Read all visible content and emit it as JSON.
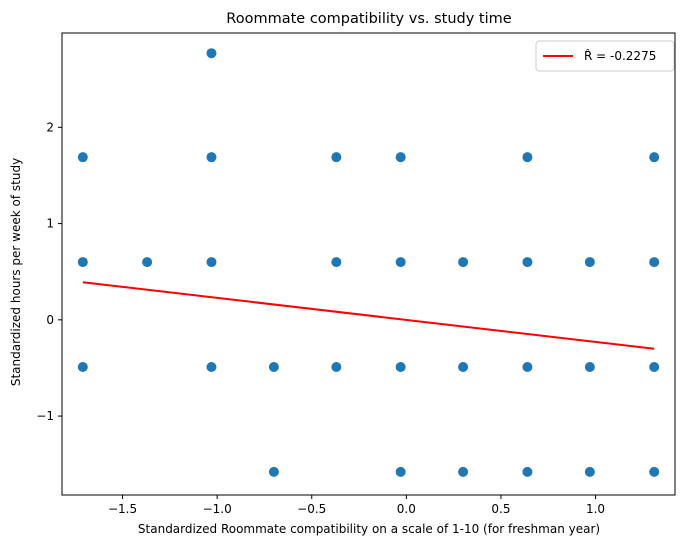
{
  "chart_data": {
    "type": "scatter",
    "title": "Roommate compatibility vs. study time",
    "xlabel": "Standardized Roommate compatibility on a scale of 1-10 (for freshman year)",
    "ylabel": "Standardized hours per week of study",
    "xlim": [
      -1.82,
      1.42
    ],
    "ylim": [
      -1.82,
      2.98
    ],
    "xticks": [
      -1.5,
      -1.0,
      -0.5,
      0.0,
      0.5,
      1.0
    ],
    "xtick_labels": [
      "−1.5",
      "−1.0",
      "−0.5",
      "0.0",
      "0.5",
      "1.0"
    ],
    "yticks": [
      -1,
      0,
      1,
      2
    ],
    "ytick_labels": [
      "−1",
      "0",
      "1",
      "2"
    ],
    "grid": false,
    "legend_position": "top-right",
    "series": [
      {
        "kind": "scatter",
        "color": "#1f77b4",
        "x": [
          -1.03,
          -1.71,
          -1.03,
          -0.37,
          -0.03,
          0.64,
          1.31,
          -1.71,
          -1.37,
          -1.03,
          -0.37,
          -0.03,
          0.3,
          0.64,
          0.97,
          1.31,
          -1.71,
          -1.03,
          -0.7,
          -0.37,
          -0.03,
          0.3,
          0.64,
          0.97,
          1.31,
          -0.7,
          -0.03,
          0.3,
          0.64,
          0.97,
          1.31
        ],
        "y": [
          2.77,
          1.69,
          1.69,
          1.69,
          1.69,
          1.69,
          1.69,
          0.6,
          0.6,
          0.6,
          0.6,
          0.6,
          0.6,
          0.6,
          0.6,
          0.6,
          -0.49,
          -0.49,
          -0.49,
          -0.49,
          -0.49,
          -0.49,
          -0.49,
          -0.49,
          -0.49,
          -1.58,
          -1.58,
          -1.58,
          -1.58,
          -1.58,
          -1.58
        ]
      },
      {
        "kind": "line",
        "name": "$\\hat{R}$ = -0.2275",
        "legend_label": "R̂ = -0.2275",
        "color": "#ff0000",
        "x": [
          -1.71,
          1.31
        ],
        "y": [
          0.39,
          -0.3
        ]
      }
    ]
  }
}
